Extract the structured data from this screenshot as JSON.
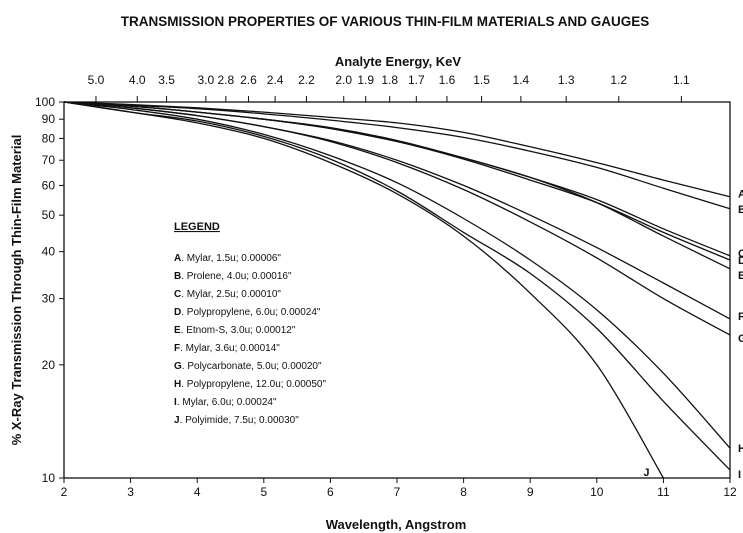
{
  "chart_data": {
    "type": "line",
    "title": "TRANSMISSION PROPERTIES OF VARIOUS THIN-FILM MATERIALS AND GAUGES",
    "xlabel": "Wavelength, Angstrom",
    "ylabel": "% X-Ray Transmission Through Thin-Film Material",
    "top_axis_label": "Analyte Energy, KeV",
    "xlim": [
      2,
      12
    ],
    "ylim": [
      10,
      100
    ],
    "y_scale": "log",
    "grid": false,
    "x_ticks": [
      2,
      3,
      4,
      5,
      6,
      7,
      8,
      9,
      10,
      11,
      12
    ],
    "y_ticks": [
      10,
      20,
      30,
      40,
      50,
      60,
      70,
      80,
      90,
      100
    ],
    "top_ticks": [
      {
        "label": "5.0",
        "wavelength": 2.48
      },
      {
        "label": "4.0",
        "wavelength": 3.1
      },
      {
        "label": "3.5",
        "wavelength": 3.54
      },
      {
        "label": "3.0",
        "wavelength": 4.13
      },
      {
        "label": "2.8",
        "wavelength": 4.43
      },
      {
        "label": "2.6",
        "wavelength": 4.77
      },
      {
        "label": "2.4",
        "wavelength": 5.17
      },
      {
        "label": "2.2",
        "wavelength": 5.64
      },
      {
        "label": "2.0",
        "wavelength": 6.2
      },
      {
        "label": "1.9",
        "wavelength": 6.53
      },
      {
        "label": "1.8",
        "wavelength": 6.89
      },
      {
        "label": "1.7",
        "wavelength": 7.29
      },
      {
        "label": "1.6",
        "wavelength": 7.75
      },
      {
        "label": "1.5",
        "wavelength": 8.27
      },
      {
        "label": "1.4",
        "wavelength": 8.86
      },
      {
        "label": "1.3",
        "wavelength": 9.54
      },
      {
        "label": "1.2",
        "wavelength": 10.33
      },
      {
        "label": "1.1",
        "wavelength": 11.27
      }
    ],
    "legend_title": "LEGEND",
    "series": [
      {
        "key": "A",
        "name": "Mylar, 1.5u; 0.00006\"",
        "end_label": "A",
        "x": [
          2,
          3,
          4,
          5,
          6,
          7,
          8,
          9,
          10,
          11,
          12
        ],
        "y": [
          100,
          98.5,
          96.5,
          94,
          91,
          88,
          83,
          76,
          69,
          62,
          56
        ]
      },
      {
        "key": "B",
        "name": "Prolene, 4.0u; 0.00016\"",
        "end_label": "B",
        "x": [
          2,
          3,
          4,
          5,
          6,
          7,
          8,
          9,
          10,
          11,
          12
        ],
        "y": [
          100,
          98,
          96,
          93,
          89.5,
          85.5,
          80.5,
          74,
          67,
          59,
          52
        ]
      },
      {
        "key": "C",
        "name": "Mylar, 2.5u; 0.00010\"",
        "end_label": "C",
        "x": [
          2,
          3,
          4,
          5,
          6,
          7,
          8,
          9,
          10,
          11,
          12
        ],
        "y": [
          100,
          97.5,
          94,
          90,
          85.5,
          79,
          71,
          63,
          55,
          46,
          39
        ]
      },
      {
        "key": "D",
        "name": "Polypropylene, 6.0u; 0.00024\"",
        "end_label": "D",
        "x": [
          2,
          3,
          4,
          5,
          6,
          7,
          8,
          9,
          10,
          11,
          12
        ],
        "y": [
          100,
          97.5,
          94,
          90,
          85,
          78.5,
          70.5,
          62,
          54,
          45,
          38
        ]
      },
      {
        "key": "E",
        "name": "Etnom-S, 3.0u; 0.00012\"",
        "end_label": "E",
        "x": [
          2,
          3,
          4,
          5,
          6,
          7,
          8,
          9,
          10,
          11,
          12
        ],
        "y": [
          100,
          97.5,
          94,
          90,
          85,
          78.5,
          71,
          63,
          54,
          44,
          36
        ]
      },
      {
        "key": "F",
        "name": "Mylar, 3.6u; 0.00014\"",
        "end_label": "F",
        "x": [
          2,
          3,
          4,
          5,
          6,
          7,
          8,
          9,
          10,
          11,
          12
        ],
        "y": [
          100,
          96.5,
          92,
          86,
          79,
          70,
          60,
          50,
          41,
          33,
          26.5
        ]
      },
      {
        "key": "G",
        "name": "Polycarbonate, 5.0u; 0.00020\"",
        "end_label": "G",
        "x": [
          2,
          3,
          4,
          5,
          6,
          7,
          8,
          9,
          10,
          11,
          12
        ],
        "y": [
          100,
          96.5,
          92,
          86,
          78.5,
          69,
          58.5,
          48,
          38.5,
          30,
          24
        ]
      },
      {
        "key": "H",
        "name": "Polypropylene, 12.0u; 0.00050\"",
        "end_label": "H",
        "x": [
          2,
          3,
          4,
          5,
          6,
          7,
          8,
          9,
          10,
          11,
          12
        ],
        "y": [
          100,
          95.5,
          90,
          82,
          72,
          61,
          49,
          38,
          28,
          19,
          12
        ]
      },
      {
        "key": "I",
        "name": "Mylar, 6.0u; 0.00024\"",
        "end_label": "I",
        "x": [
          2,
          3,
          4,
          5,
          6,
          7,
          8,
          9,
          10,
          11,
          12
        ],
        "y": [
          100,
          94,
          89,
          81,
          70.5,
          58,
          45,
          35,
          25,
          16,
          10.5
        ]
      },
      {
        "key": "J",
        "name": "Polyimide, 7.5u; 0.00030\"",
        "end_label": "J",
        "x": [
          2,
          3,
          4,
          5,
          6,
          7,
          8,
          9,
          10,
          11
        ],
        "y": [
          100,
          94,
          88,
          80,
          69,
          57,
          44,
          31,
          20,
          10
        ]
      }
    ]
  }
}
